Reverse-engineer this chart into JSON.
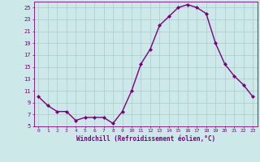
{
  "x": [
    0,
    1,
    2,
    3,
    4,
    5,
    6,
    7,
    8,
    9,
    10,
    11,
    12,
    13,
    14,
    15,
    16,
    17,
    18,
    19,
    20,
    21,
    22,
    23
  ],
  "y": [
    10,
    8.5,
    7.5,
    7.5,
    6,
    6.5,
    6.5,
    6.5,
    5.5,
    7.5,
    11,
    15.5,
    18,
    22,
    23.5,
    25,
    25.5,
    25,
    24,
    19,
    15.5,
    13.5,
    12,
    10
  ],
  "xlabel": "Windchill (Refroidissement éolien,°C)",
  "ylim": [
    5,
    26
  ],
  "xlim": [
    -0.5,
    23.5
  ],
  "yticks": [
    5,
    7,
    9,
    11,
    13,
    15,
    17,
    19,
    21,
    23,
    25
  ],
  "xticks": [
    0,
    1,
    2,
    3,
    4,
    5,
    6,
    7,
    8,
    9,
    10,
    11,
    12,
    13,
    14,
    15,
    16,
    17,
    18,
    19,
    20,
    21,
    22,
    23
  ],
  "line_color": "#7B0080",
  "marker_color": "#7B0080",
  "bg_color": "#cce8e8",
  "grid_color": "#aacccc",
  "tick_color": "#7B0080",
  "xlabel_color": "#7B0080",
  "marker": "D",
  "markersize": 2,
  "linewidth": 1.0,
  "tick_fontsize": 4.5,
  "xlabel_fontsize": 5.5
}
